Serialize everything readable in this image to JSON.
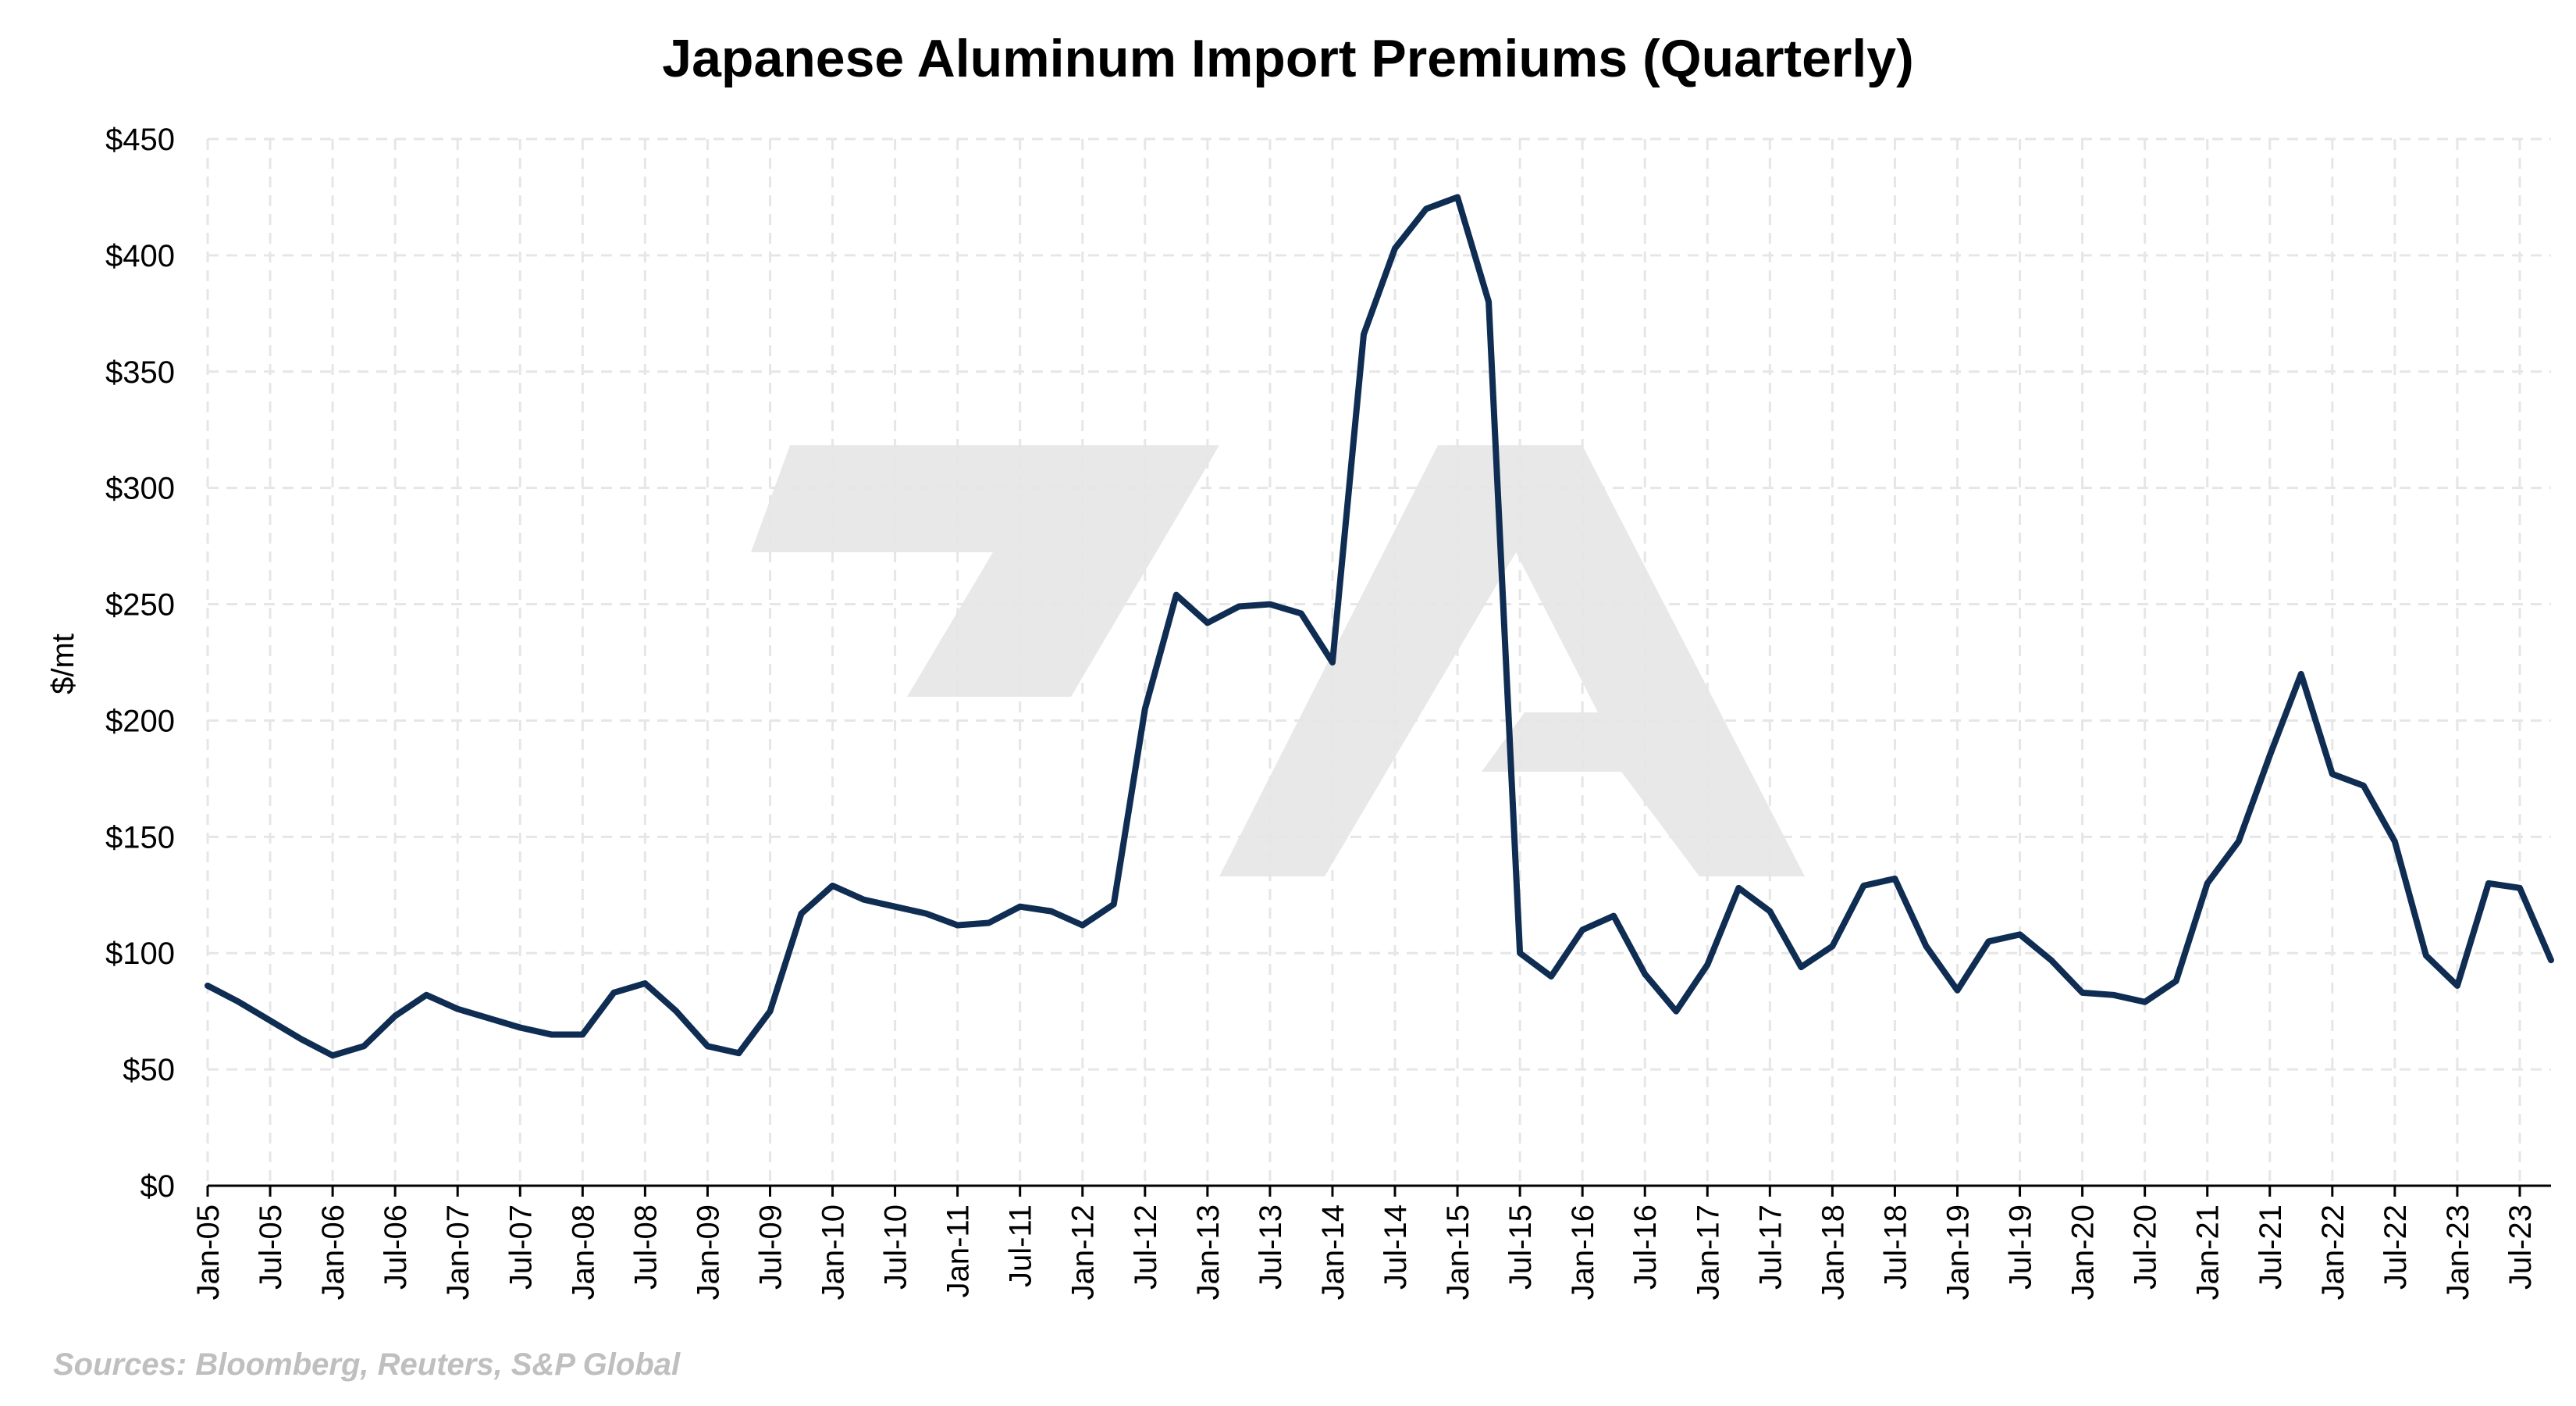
{
  "chart_data": {
    "type": "line",
    "title": "Japanese Aluminum Import Premiums (Quarterly)",
    "ylabel": "$/mt",
    "xlabel": "",
    "source": "Sources: Bloomberg, Reuters, S&P Global",
    "ylim": [
      0,
      450
    ],
    "yticks": [
      0,
      50,
      100,
      150,
      200,
      250,
      300,
      350,
      400,
      450
    ],
    "ytick_labels": [
      "$0",
      "$50",
      "$100",
      "$150",
      "$200",
      "$250",
      "$300",
      "$350",
      "$400",
      "$450"
    ],
    "xtick_labels": [
      "Jan-05",
      "Jul-05",
      "Jan-06",
      "Jul-06",
      "Jan-07",
      "Jul-07",
      "Jan-08",
      "Jul-08",
      "Jan-09",
      "Jul-09",
      "Jan-10",
      "Jul-10",
      "Jan-11",
      "Jul-11",
      "Jan-12",
      "Jul-12",
      "Jan-13",
      "Jul-13",
      "Jan-14",
      "Jul-14",
      "Jan-15",
      "Jul-15",
      "Jan-16",
      "Jul-16",
      "Jan-17",
      "Jul-17",
      "Jan-18",
      "Jul-18",
      "Jan-19",
      "Jul-19",
      "Jan-20",
      "Jul-20",
      "Jan-21",
      "Jul-21",
      "Jan-22",
      "Jul-22",
      "Jan-23",
      "Jul-23"
    ],
    "grid": true,
    "line_color": "#0f2d52",
    "watermark_color": "#e8e8e8",
    "series": [
      {
        "values": [
          86,
          79,
          71,
          63,
          56,
          60,
          73,
          82,
          76,
          72,
          68,
          65,
          65,
          83,
          87,
          75,
          60,
          57,
          75,
          117,
          129,
          123,
          120,
          117,
          112,
          113,
          120,
          118,
          112,
          121,
          205,
          254,
          242,
          249,
          250,
          246,
          225,
          366,
          403,
          420,
          425,
          380,
          100,
          90,
          110,
          116,
          91,
          75,
          95,
          128,
          118,
          94,
          103,
          129,
          132,
          103,
          84,
          105,
          108,
          97,
          83,
          82,
          79,
          88,
          130,
          148,
          185,
          220,
          177,
          172,
          148,
          99,
          86,
          130,
          128,
          97
        ]
      }
    ]
  }
}
